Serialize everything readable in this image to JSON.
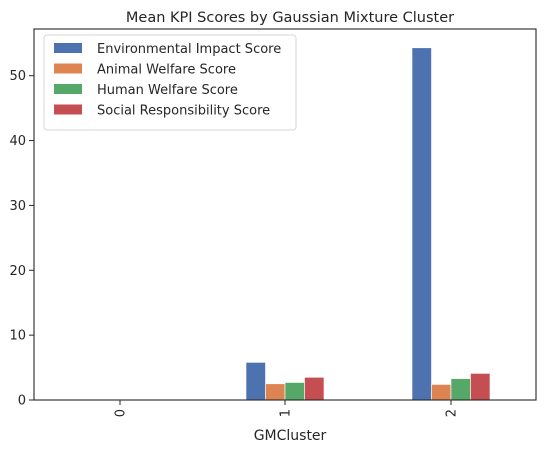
{
  "chart_data": {
    "type": "bar",
    "title": "Mean KPI Scores by Gaussian Mixture Cluster",
    "xlabel": "GMCluster",
    "ylabel": "",
    "categories": [
      "0",
      "1",
      "2"
    ],
    "ylim": [
      0,
      57.2
    ],
    "yticks": [
      "0",
      "10",
      "20",
      "30",
      "40",
      "50"
    ],
    "grid": false,
    "legend_position": "top-left",
    "series": [
      {
        "name": "Environmental Impact Score",
        "color": "#4c72b0",
        "values": [
          0.05,
          5.8,
          54.3
        ]
      },
      {
        "name": "Animal Welfare Score",
        "color": "#dd8452",
        "values": [
          0.05,
          2.5,
          2.4
        ]
      },
      {
        "name": "Human Welfare Score",
        "color": "#55a868",
        "values": [
          0.05,
          2.7,
          3.3
        ]
      },
      {
        "name": "Social Responsibility Score",
        "color": "#c44e52",
        "values": [
          0.05,
          3.5,
          4.1
        ]
      }
    ]
  }
}
